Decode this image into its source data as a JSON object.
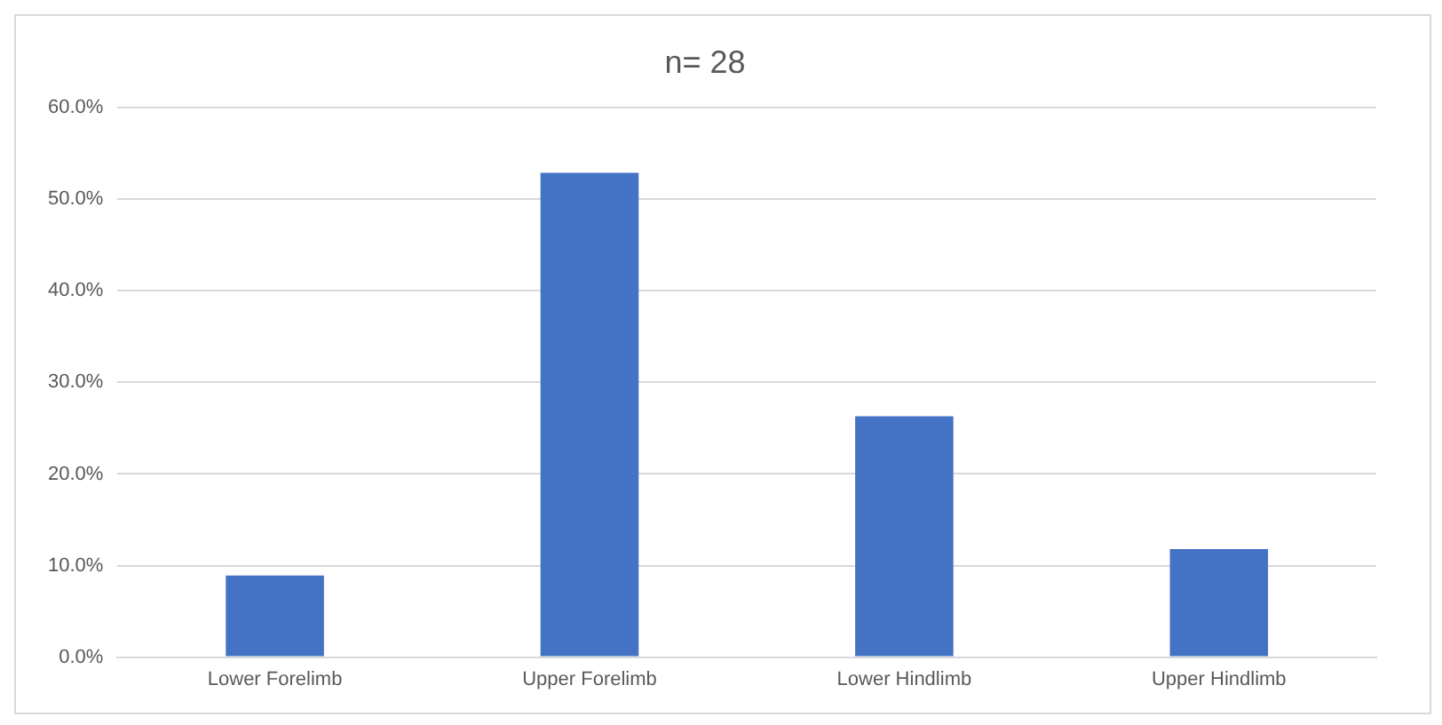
{
  "chart_data": {
    "type": "bar",
    "title": "n= 28",
    "categories": [
      "Lower Forelimb",
      "Upper Forelimb",
      "Lower Hindlimb",
      "Upper Hindlimb"
    ],
    "values": [
      8.9,
      52.9,
      26.3,
      11.8
    ],
    "color": "#4472c4",
    "ylim": [
      0,
      60
    ],
    "yticks": [
      {
        "value": 0,
        "label": "0.0%"
      },
      {
        "value": 10,
        "label": "10.0%"
      },
      {
        "value": 20,
        "label": "20.0%"
      },
      {
        "value": 30,
        "label": "30.0%"
      },
      {
        "value": 40,
        "label": "40.0%"
      },
      {
        "value": 50,
        "label": "50.0%"
      },
      {
        "value": 60,
        "label": "60.0%"
      }
    ],
    "grid": "y",
    "legend": false
  }
}
